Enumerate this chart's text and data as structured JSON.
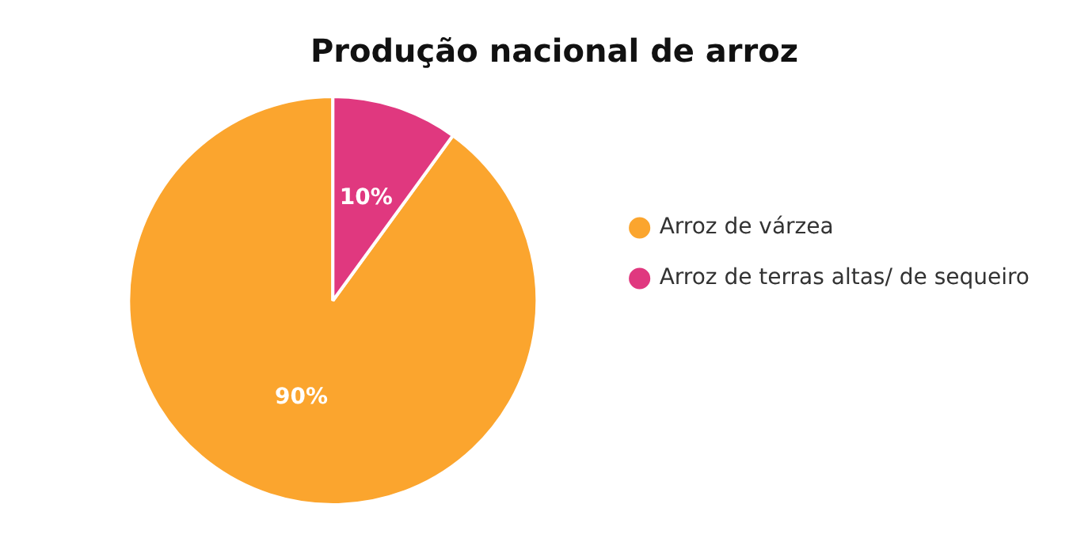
{
  "chart_data": {
    "type": "pie",
    "title": "Produção nacional de arroz",
    "categories": [
      "Arroz de várzea",
      "Arroz de terras altas/ de sequeiro"
    ],
    "values": [
      90,
      10
    ],
    "colors": [
      "#fba52e",
      "#e0387f"
    ],
    "value_labels": [
      "90%",
      "10%"
    ],
    "legend": "right"
  }
}
